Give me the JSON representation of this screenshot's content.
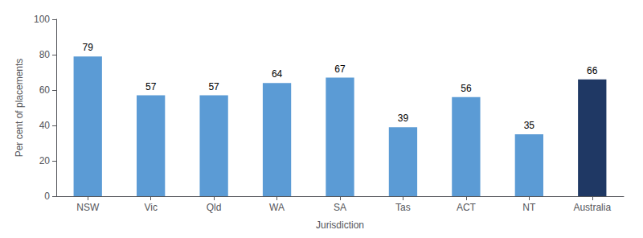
{
  "chart_data": {
    "type": "bar",
    "categories": [
      "NSW",
      "Vic",
      "Qld",
      "WA",
      "SA",
      "Tas",
      "ACT",
      "NT",
      "Australia"
    ],
    "values": [
      79,
      57,
      57,
      64,
      67,
      39,
      56,
      35,
      66
    ],
    "colors": [
      "#5b9bd5",
      "#5b9bd5",
      "#5b9bd5",
      "#5b9bd5",
      "#5b9bd5",
      "#5b9bd5",
      "#5b9bd5",
      "#5b9bd5",
      "#1f3864"
    ],
    "xlabel": "Jurisdiction",
    "ylabel": "Per cent of placements",
    "ylim": [
      0,
      100
    ],
    "yticks": [
      0,
      20,
      40,
      60,
      80,
      100
    ],
    "grid": false,
    "data_labels": true
  }
}
